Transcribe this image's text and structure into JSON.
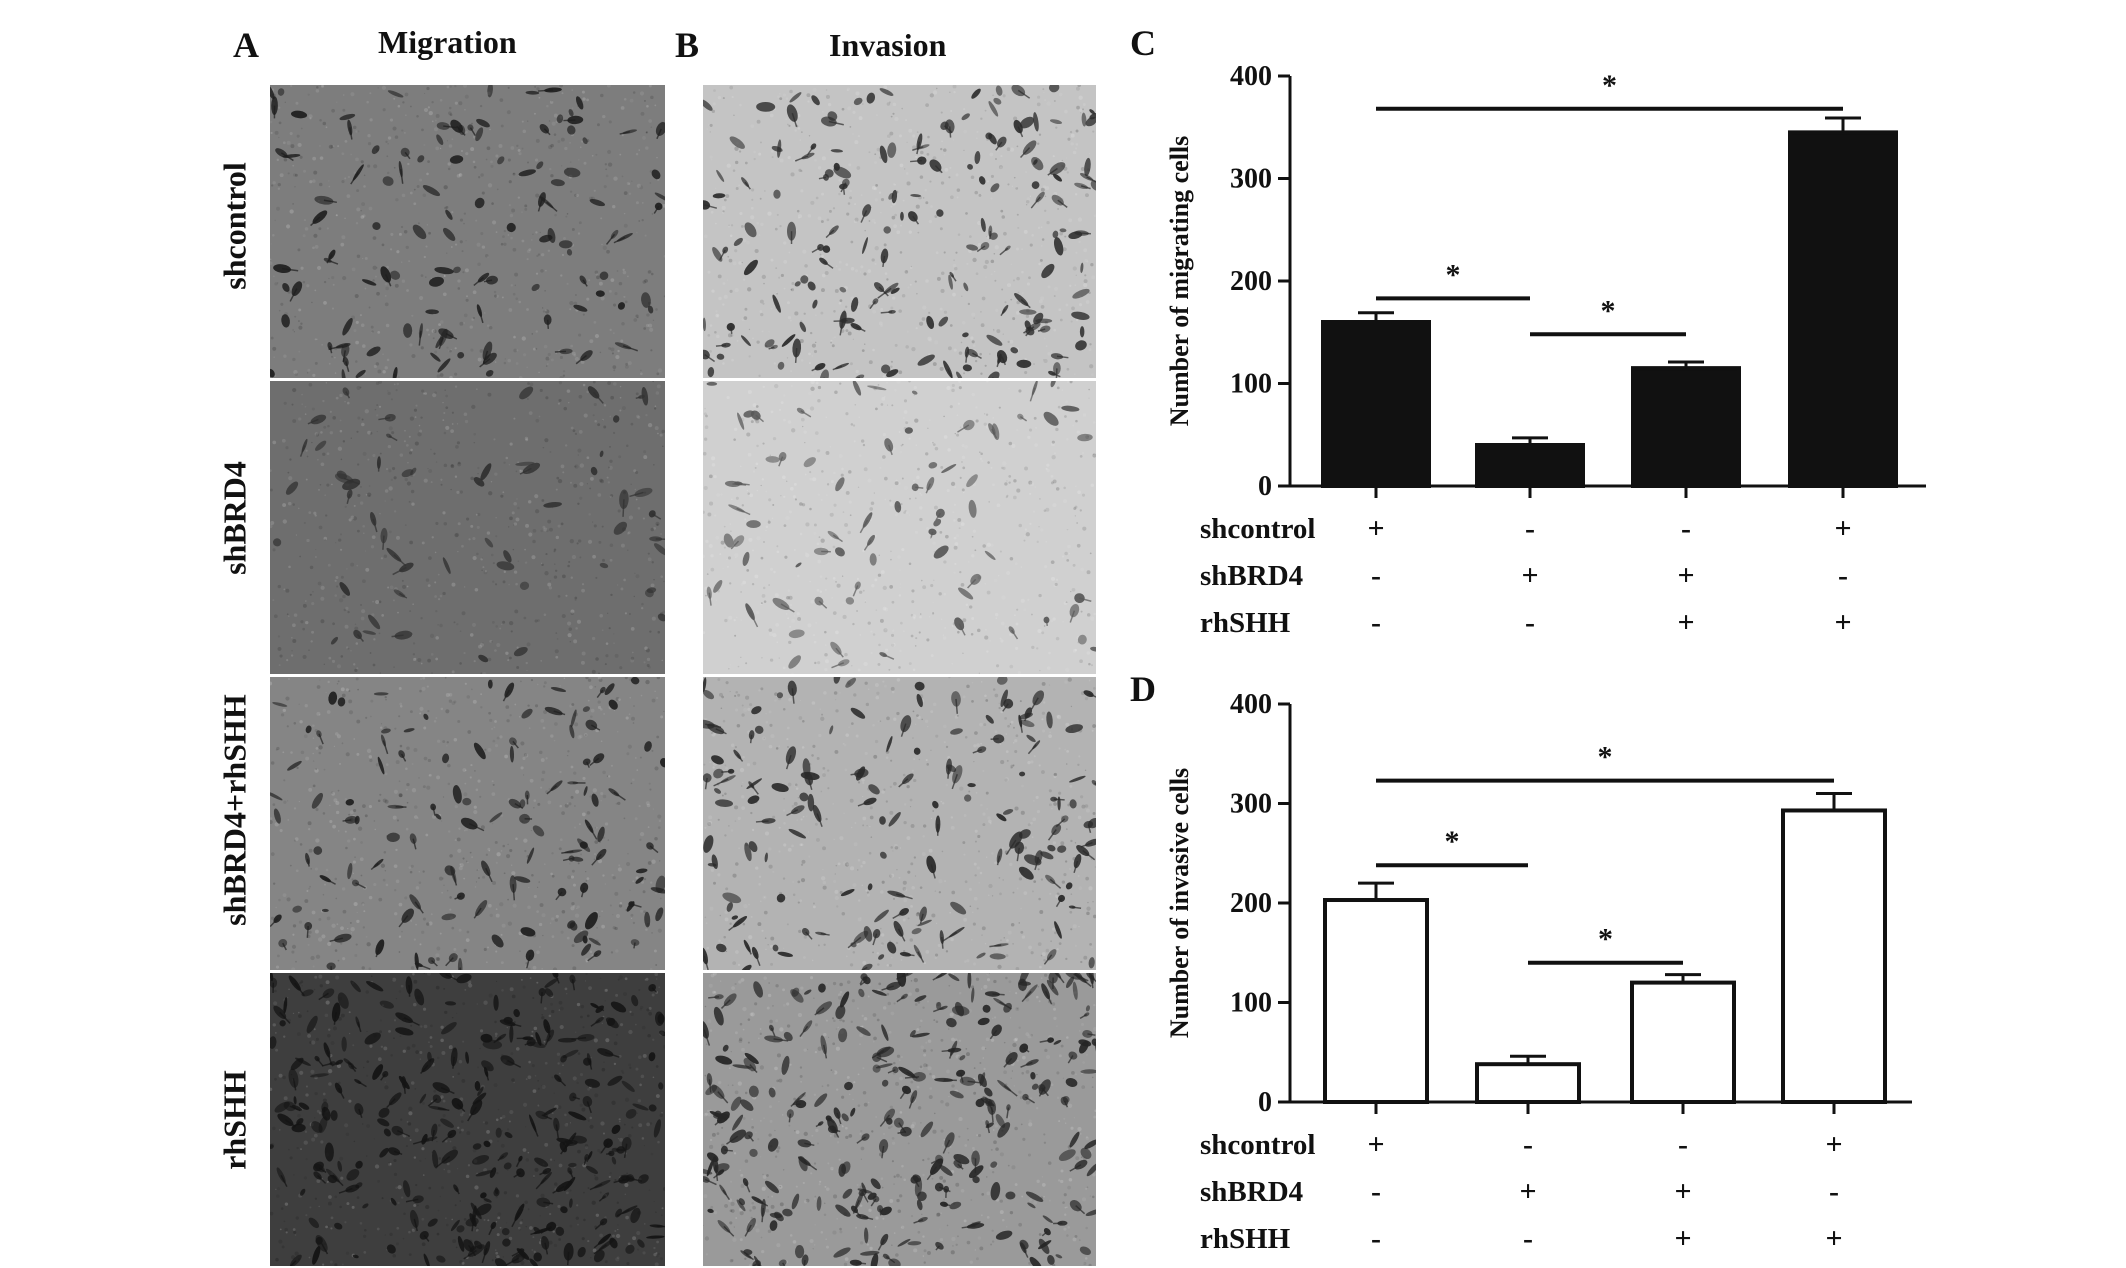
{
  "panels": {
    "A": {
      "letter": "A",
      "title": "Migration"
    },
    "B": {
      "letter": "B",
      "title": "Invasion"
    },
    "C": {
      "letter": "C"
    },
    "D": {
      "letter": "D"
    }
  },
  "row_labels": [
    "shcontrol",
    "shBRD4",
    "shBRD4+rhSHH",
    "rhSHH"
  ],
  "micrographs": {
    "migration": [
      {
        "bg": "#7d7d7d",
        "cell": "#1e1e1e",
        "density": 110
      },
      {
        "bg": "#6e6e6e",
        "cell": "#303030",
        "density": 55
      },
      {
        "bg": "#858585",
        "cell": "#1f1f1f",
        "density": 120
      },
      {
        "bg": "#3e3e3e",
        "cell": "#141414",
        "density": 260
      }
    ],
    "invasion": [
      {
        "bg": "#c4c4c4",
        "cell": "#2c2c2c",
        "density": 170
      },
      {
        "bg": "#d0d0d0",
        "cell": "#585858",
        "density": 70
      },
      {
        "bg": "#b3b3b3",
        "cell": "#2a2a2a",
        "density": 150
      },
      {
        "bg": "#9a9a9a",
        "cell": "#262626",
        "density": 260
      }
    ]
  },
  "chart_data": [
    {
      "panel": "C",
      "type": "bar",
      "ylabel": "Number of migrating cells",
      "ylim": [
        0,
        400
      ],
      "yticks": [
        "0",
        "100",
        "200",
        "300",
        "400"
      ],
      "bar_fill": "#111111",
      "values": [
        160,
        40,
        115,
        345
      ],
      "errors": [
        9,
        7,
        6,
        14
      ],
      "factors": [
        {
          "name": "shcontrol",
          "signs": [
            "+",
            "-",
            "-",
            "+"
          ]
        },
        {
          "name": "shBRD4",
          "signs": [
            "-",
            "+",
            "+",
            "-"
          ]
        },
        {
          "name": "rhSHH",
          "signs": [
            "-",
            "-",
            "+",
            "+"
          ]
        }
      ],
      "significance": [
        {
          "from": 0,
          "to": 3,
          "level": 368,
          "label": "*"
        },
        {
          "from": 0,
          "to": 1,
          "level": 183,
          "label": "*"
        },
        {
          "from": 1,
          "to": 2,
          "level": 148,
          "label": "*"
        }
      ]
    },
    {
      "panel": "D",
      "type": "bar",
      "ylabel": "Number of invasive cells",
      "ylim": [
        0,
        400
      ],
      "yticks": [
        "0",
        "100",
        "200",
        "300",
        "400"
      ],
      "bar_fill": "#ffffff",
      "values": [
        203,
        38,
        120,
        293
      ],
      "errors": [
        17,
        8,
        8,
        17
      ],
      "factors": [
        {
          "name": "shcontrol",
          "signs": [
            "+",
            "-",
            "-",
            "+"
          ]
        },
        {
          "name": "shBRD4",
          "signs": [
            "-",
            "+",
            "+",
            "-"
          ]
        },
        {
          "name": "rhSHH",
          "signs": [
            "-",
            "-",
            "+",
            "+"
          ]
        }
      ],
      "significance": [
        {
          "from": 0,
          "to": 3,
          "level": 323,
          "label": "*"
        },
        {
          "from": 0,
          "to": 1,
          "level": 238,
          "label": "*"
        },
        {
          "from": 1,
          "to": 2,
          "level": 140,
          "label": "*"
        }
      ]
    }
  ]
}
